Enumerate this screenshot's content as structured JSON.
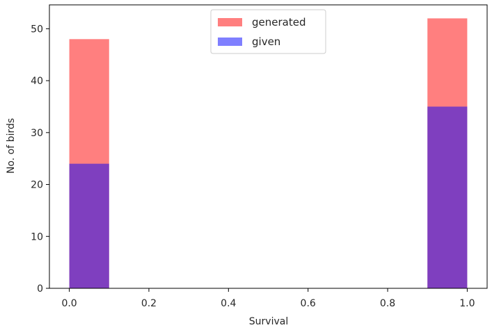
{
  "chart_data": {
    "type": "bar",
    "title": "",
    "xlabel": "Survival",
    "ylabel": "No. of birds",
    "xlim": [
      -0.05,
      1.05
    ],
    "ylim": [
      0,
      54.6
    ],
    "xticks": [
      0.0,
      0.2,
      0.4,
      0.6,
      0.8,
      1.0
    ],
    "xtick_labels": [
      "0.0",
      "0.2",
      "0.4",
      "0.6",
      "0.8",
      "1.0"
    ],
    "yticks": [
      0,
      10,
      20,
      30,
      40,
      50
    ],
    "ytick_labels": [
      "0",
      "10",
      "20",
      "30",
      "40",
      "50"
    ],
    "bin_width": 0.1,
    "grid": false,
    "legend_position": "top-center",
    "series": [
      {
        "name": "generated",
        "color": "#ff0000",
        "alpha": 0.5,
        "bins": [
          0.0,
          0.9
        ],
        "values": [
          48,
          52
        ]
      },
      {
        "name": "given",
        "color": "#0000ff",
        "alpha": 0.5,
        "bins": [
          0.0,
          0.9
        ],
        "values": [
          24,
          35
        ]
      }
    ]
  }
}
